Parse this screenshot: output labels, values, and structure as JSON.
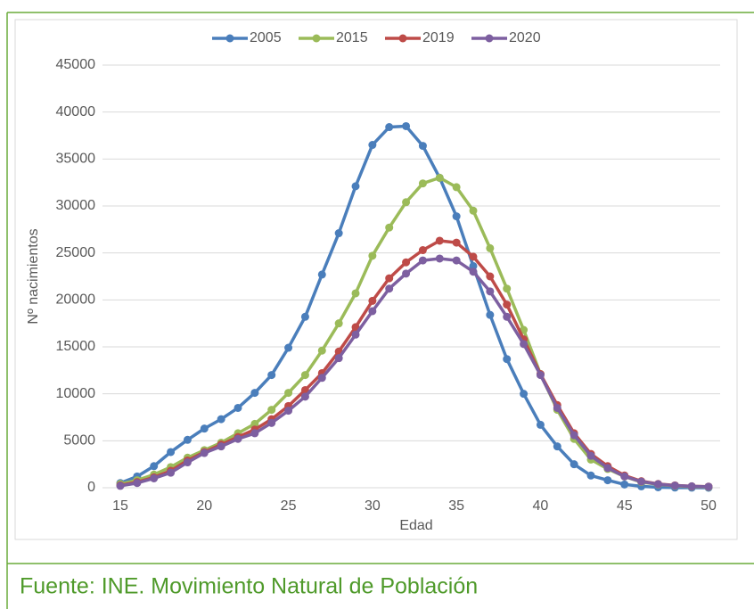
{
  "chart_data": {
    "type": "line",
    "x": [
      15,
      16,
      17,
      18,
      19,
      20,
      21,
      22,
      23,
      24,
      25,
      26,
      27,
      28,
      29,
      30,
      31,
      32,
      33,
      34,
      35,
      36,
      37,
      38,
      39,
      40,
      41,
      42,
      43,
      44,
      45,
      46,
      47,
      48,
      49,
      50
    ],
    "xlabel": "Edad",
    "ylabel": "Nº nacimientos",
    "xlim": [
      15,
      50
    ],
    "xticks": [
      15,
      20,
      25,
      30,
      35,
      40,
      45,
      50
    ],
    "ylim": [
      0,
      45000
    ],
    "yticks": [
      0,
      5000,
      10000,
      15000,
      20000,
      25000,
      30000,
      35000,
      40000,
      45000
    ],
    "grid": true,
    "legend": "top",
    "series": [
      {
        "name": "2005",
        "color": "#4a7ebb",
        "values": [
          500,
          1200,
          2300,
          3800,
          5100,
          6300,
          7300,
          8500,
          10100,
          12000,
          14900,
          18200,
          22700,
          27100,
          32100,
          36500,
          38400,
          38500,
          36400,
          33000,
          28900,
          23600,
          18400,
          13700,
          10000,
          6700,
          4400,
          2500,
          1300,
          800,
          350,
          150,
          50,
          20,
          10,
          5
        ]
      },
      {
        "name": "2015",
        "color": "#9bbb59",
        "values": [
          400,
          800,
          1400,
          2200,
          3200,
          4000,
          4800,
          5800,
          6800,
          8300,
          10100,
          12000,
          14600,
          17500,
          20700,
          24700,
          27700,
          30400,
          32400,
          33000,
          32000,
          29500,
          25500,
          21200,
          16800,
          12100,
          8300,
          5200,
          3000,
          2000,
          1200,
          600,
          350,
          200,
          120,
          80
        ]
      },
      {
        "name": "2019",
        "color": "#be4b48",
        "values": [
          250,
          600,
          1100,
          1800,
          2900,
          3800,
          4600,
          5400,
          6200,
          7300,
          8700,
          10400,
          12200,
          14500,
          17100,
          19900,
          22300,
          24000,
          25300,
          26300,
          26100,
          24600,
          22500,
          19500,
          15800,
          12100,
          8800,
          5800,
          3600,
          2300,
          1300,
          700,
          400,
          250,
          150,
          120
        ]
      },
      {
        "name": "2020",
        "color": "#7d5fa0",
        "values": [
          200,
          500,
          1000,
          1600,
          2700,
          3700,
          4400,
          5200,
          5800,
          6900,
          8200,
          9700,
          11700,
          13800,
          16300,
          18800,
          21200,
          22800,
          24200,
          24400,
          24200,
          23000,
          20900,
          18200,
          15300,
          12000,
          8500,
          5600,
          3400,
          2100,
          1200,
          650,
          380,
          230,
          150,
          110
        ]
      }
    ]
  },
  "source": "Fuente: INE. Movimiento Natural de Población"
}
